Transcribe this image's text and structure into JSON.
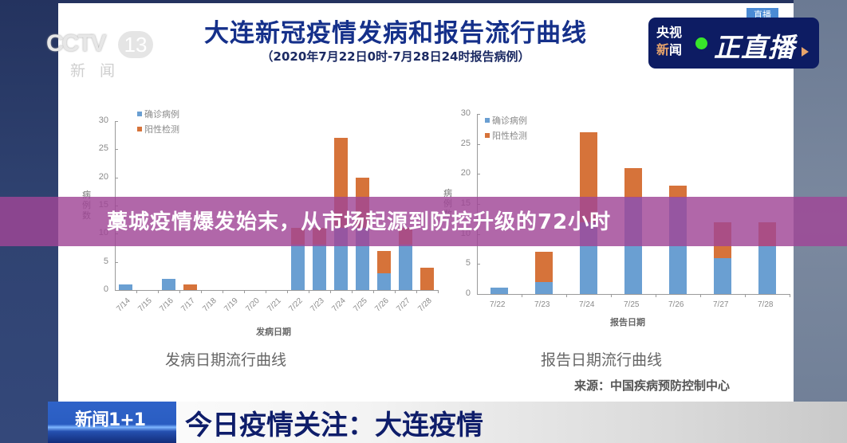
{
  "header": {
    "title": "大连新冠疫情发病和报告流行曲线",
    "subtitle": "（2020年7月22日0时-7月28日24时报告病例）"
  },
  "channel_logo": {
    "name": "CCTV",
    "number": "13",
    "sub": "新闻"
  },
  "live_badge": {
    "line1": "央视",
    "line2a": "新",
    "line2b": "闻",
    "live_text": "正在直播",
    "live_text_display": "正直播",
    "dot_color": "#38e62a",
    "behind_tag": "直播"
  },
  "banner": {
    "headline": "藁城疫情爆发始末，从市场起源到防控升级的72小时"
  },
  "source": "来源：中国疾病预防控制中心",
  "lower_third": {
    "program_logo": "新闻1+1",
    "title": "今日疫情关注：大连疫情"
  },
  "colors": {
    "confirmed": "#6a9fd2",
    "positive_test": "#d6733a",
    "title_blue": "#15308a",
    "banner_purple": "#a04696"
  },
  "chart_data": [
    {
      "type": "bar",
      "stacked": true,
      "title": "发病日期流行曲线",
      "xlabel": "发病日期",
      "ylabel": "病例数",
      "ylim": [
        0,
        30
      ],
      "yticks": [
        0,
        5,
        10,
        15,
        20,
        25,
        30
      ],
      "legend": [
        "确诊病例",
        "阳性检测"
      ],
      "legend_position": "top-left",
      "categories": [
        "7/14",
        "7/15",
        "7/16",
        "7/17",
        "7/18",
        "7/19",
        "7/20",
        "7/21",
        "7/22",
        "7/23",
        "7/24",
        "7/25",
        "7/26",
        "7/27",
        "7/28"
      ],
      "series": [
        {
          "name": "确诊病例",
          "color": "#6a9fd2",
          "values": [
            1,
            0,
            2,
            0,
            0,
            0,
            0,
            0,
            8,
            8,
            11,
            11,
            3,
            8,
            0
          ]
        },
        {
          "name": "阳性检测",
          "color": "#d6733a",
          "values": [
            0,
            0,
            0,
            1,
            0,
            0,
            0,
            0,
            3,
            3,
            16,
            9,
            4,
            3,
            4
          ]
        }
      ]
    },
    {
      "type": "bar",
      "stacked": true,
      "title": "报告日期流行曲线",
      "xlabel": "报告日期",
      "ylabel": "病例数",
      "ylim": [
        0,
        30
      ],
      "yticks": [
        0,
        5,
        10,
        15,
        20,
        25,
        30
      ],
      "legend": [
        "确诊病例",
        "阳性检测"
      ],
      "legend_position": "top-left",
      "categories": [
        "7/22",
        "7/23",
        "7/24",
        "7/25",
        "7/26",
        "7/27",
        "7/28"
      ],
      "series": [
        {
          "name": "确诊病例",
          "color": "#6a9fd2",
          "values": [
            1,
            2,
            12,
            16,
            16,
            6,
            8
          ]
        },
        {
          "name": "阳性检测",
          "color": "#d6733a",
          "values": [
            0,
            5,
            15,
            5,
            2,
            6,
            4
          ]
        }
      ]
    }
  ]
}
